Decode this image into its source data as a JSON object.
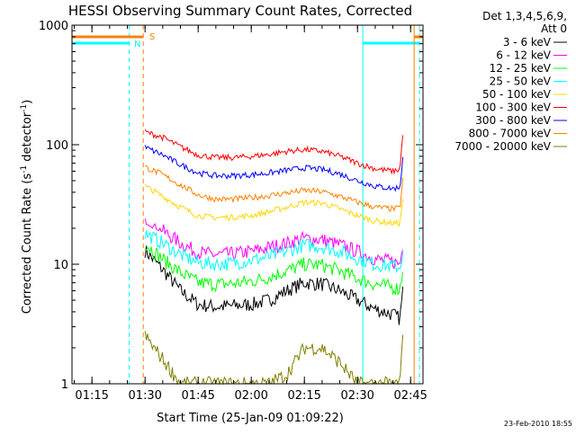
{
  "chart_data": {
    "type": "line",
    "title": "HESSI Observing Summary Count Rates, Corrected",
    "xlabel": "Start Time (25-Jan-09 01:09:22)",
    "ylabel": "Corrected Count Rate (s",
    "ylabel_sup": "-1",
    "ylabel_mid": " detector",
    "ylabel_sup2": "-1",
    "ylabel_end": ")",
    "yscale": "log",
    "xlim": [
      "01:09:22",
      "02:48:30"
    ],
    "ylim": [
      1,
      1000
    ],
    "x_ticks": [
      "01:15",
      "01:30",
      "01:45",
      "02:00",
      "02:15",
      "02:30",
      "02:45"
    ],
    "y_ticks": [
      "1",
      "10",
      "100",
      "1000"
    ],
    "legend_header": [
      "Det 1,3,4,5,6,9,",
      "Att 0"
    ],
    "legend_position": "right",
    "markers": {
      "N": {
        "label": "N",
        "color": "#00ffff"
      },
      "S": {
        "label": "S",
        "color": "#ff8000"
      }
    },
    "night_intervals": [
      [
        "01:09:22",
        "01:25:30"
      ],
      [
        "02:31:30",
        "02:47:30"
      ]
    ],
    "saa_intervals": [
      [
        "01:09:22",
        "01:29:30"
      ],
      [
        "02:46:00",
        "02:48:30"
      ]
    ],
    "series": [
      {
        "name": "3 - 6 keV",
        "color": "#000000",
        "x": [
          "01:30",
          "01:35",
          "01:40",
          "01:45",
          "01:50",
          "01:55",
          "02:00",
          "02:05",
          "02:10",
          "02:15",
          "02:20",
          "02:25",
          "02:30",
          "02:35",
          "02:40",
          "02:42",
          "02:43"
        ],
        "values": [
          13,
          9,
          6,
          4.6,
          4.4,
          4.5,
          4.6,
          5,
          6,
          7,
          6.8,
          6,
          5,
          4.2,
          3.8,
          3.5,
          7
        ]
      },
      {
        "name": "6 - 12 keV",
        "color": "#ff00ff",
        "x": [
          "01:30",
          "01:35",
          "01:40",
          "01:45",
          "01:50",
          "01:55",
          "02:00",
          "02:05",
          "02:10",
          "02:15",
          "02:20",
          "02:25",
          "02:30",
          "02:35",
          "02:40",
          "02:42",
          "02:43"
        ],
        "values": [
          23,
          19,
          15,
          12.5,
          12,
          12.2,
          12.8,
          13.8,
          15,
          16.5,
          16,
          14.5,
          12.8,
          11,
          10.5,
          10,
          16
        ]
      },
      {
        "name": "12 - 25 keV",
        "color": "#00ff00",
        "x": [
          "01:30",
          "01:35",
          "01:40",
          "01:45",
          "01:50",
          "01:55",
          "02:00",
          "02:05",
          "02:10",
          "02:15",
          "02:20",
          "02:25",
          "02:30",
          "02:35",
          "02:40",
          "02:42",
          "02:43"
        ],
        "values": [
          15,
          11,
          8.5,
          7,
          6.8,
          6.9,
          7.2,
          7.8,
          8.8,
          10,
          9.8,
          8.8,
          7.6,
          6.8,
          6.4,
          6.2,
          10
        ]
      },
      {
        "name": "25 - 50 keV",
        "color": "#00ffff",
        "x": [
          "01:30",
          "01:35",
          "01:40",
          "01:45",
          "01:50",
          "01:55",
          "02:00",
          "02:05",
          "02:10",
          "02:15",
          "02:20",
          "02:25",
          "02:30",
          "02:35",
          "02:40",
          "02:42",
          "02:43"
        ],
        "values": [
          18,
          15,
          12,
          10.3,
          10,
          10.2,
          10.8,
          11.5,
          12.8,
          14.5,
          14,
          12.8,
          11.2,
          10,
          9.6,
          9.4,
          14
        ]
      },
      {
        "name": "50 - 100 keV",
        "color": "#ffd700",
        "x": [
          "01:30",
          "01:35",
          "01:40",
          "01:45",
          "01:50",
          "01:55",
          "02:00",
          "02:05",
          "02:10",
          "02:15",
          "02:20",
          "02:25",
          "02:30",
          "02:35",
          "02:40",
          "02:42",
          "02:43"
        ],
        "values": [
          45,
          37,
          30,
          25.5,
          24.5,
          24.8,
          25.5,
          27.5,
          30,
          33,
          32.5,
          29,
          25.5,
          23,
          22,
          22,
          40
        ]
      },
      {
        "name": "100 - 300 keV",
        "color": "#ff0000",
        "x": [
          "01:30",
          "01:35",
          "01:40",
          "01:45",
          "01:50",
          "01:55",
          "02:00",
          "02:05",
          "02:10",
          "02:15",
          "02:20",
          "02:25",
          "02:30",
          "02:35",
          "02:40",
          "02:42",
          "02:43"
        ],
        "values": [
          128,
          115,
          96,
          82,
          78,
          78,
          80,
          83,
          88,
          91,
          88,
          80,
          70,
          63,
          60,
          62,
          150
        ]
      },
      {
        "name": "300 - 800 keV",
        "color": "#0000ff",
        "x": [
          "01:30",
          "01:35",
          "01:40",
          "01:45",
          "01:50",
          "01:55",
          "02:00",
          "02:05",
          "02:10",
          "02:15",
          "02:20",
          "02:25",
          "02:30",
          "02:35",
          "02:40",
          "02:42",
          "02:43"
        ],
        "values": [
          95,
          82,
          68,
          58,
          55,
          55,
          56,
          58,
          61,
          64,
          62,
          57,
          50,
          45,
          43,
          44,
          90
        ]
      },
      {
        "name": "800 - 7000 keV",
        "color": "#ff8000",
        "x": [
          "01:30",
          "01:35",
          "01:40",
          "01:45",
          "01:50",
          "01:55",
          "02:00",
          "02:05",
          "02:10",
          "02:15",
          "02:20",
          "02:25",
          "02:30",
          "02:35",
          "02:40",
          "02:42",
          "02:43"
        ],
        "values": [
          65,
          56,
          46,
          38,
          35,
          35,
          36,
          37.5,
          39.5,
          41.5,
          40.5,
          37,
          33,
          30,
          29,
          29.5,
          60
        ]
      },
      {
        "name": "7000 - 20000 keV",
        "color": "#808000",
        "x": [
          "01:30",
          "01:35",
          "01:40",
          "01:45",
          "01:50",
          "01:55",
          "02:00",
          "02:05",
          "02:10",
          "02:15",
          "02:20",
          "02:25",
          "02:30",
          "02:35",
          "02:40",
          "02:42",
          "02:43"
        ],
        "values": [
          2.5,
          1.6,
          1,
          1,
          1,
          1,
          1,
          1,
          1.2,
          2,
          2,
          1.5,
          1,
          1,
          1,
          1,
          3
        ]
      }
    ]
  },
  "footer": {
    "timestamp": "23-Feb-2010 18:55"
  }
}
